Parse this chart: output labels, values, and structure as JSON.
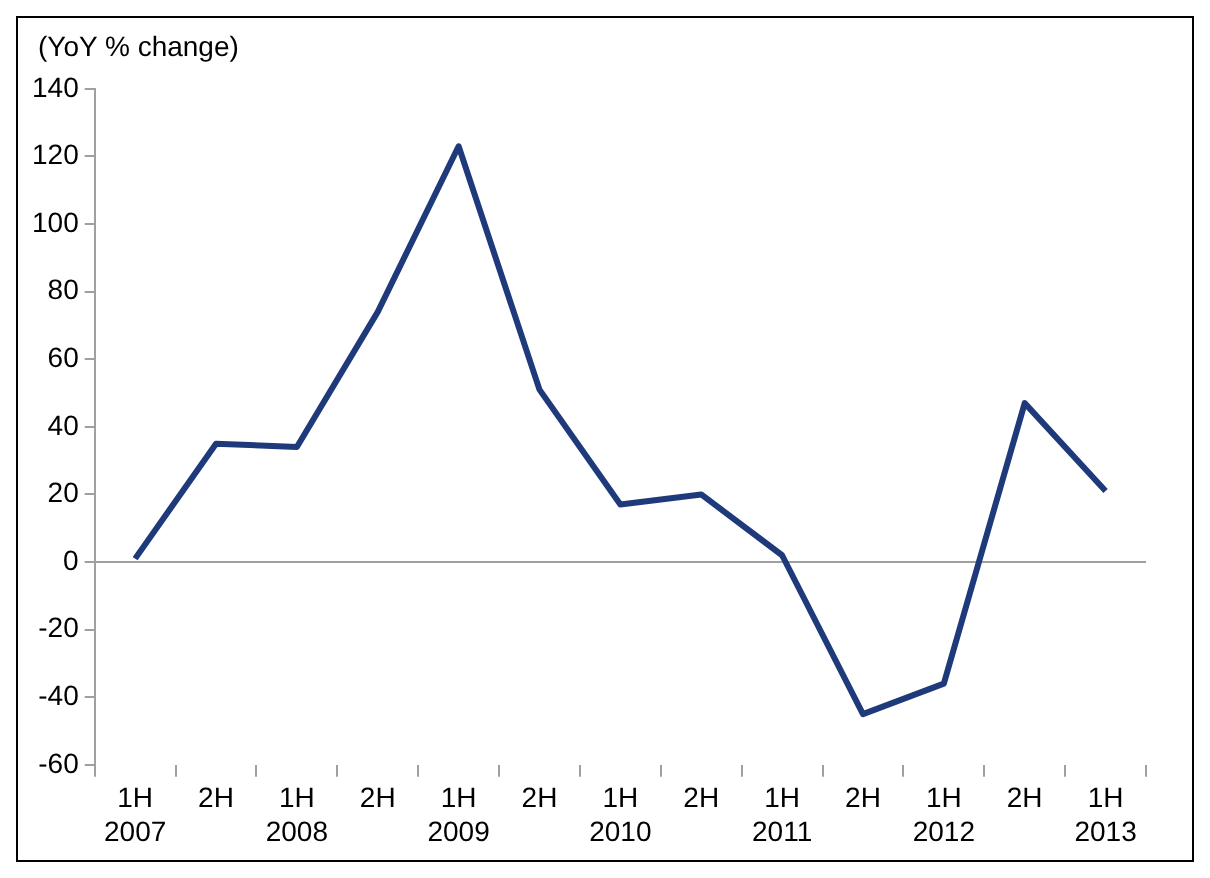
{
  "chart_data": {
    "type": "line",
    "ylabel": "(YoY % change)",
    "categories": [
      "1H\n2007",
      "2H",
      "1H\n2008",
      "2H",
      "1H\n2009",
      "2H",
      "1H\n2010",
      "2H",
      "1H\n2011",
      "2H",
      "1H\n2012",
      "2H",
      "1H\n2013"
    ],
    "series": [
      {
        "color": "#1f3a7a",
        "values": [
          1,
          35,
          34,
          74,
          123,
          51,
          17,
          20,
          2,
          -45,
          -36,
          47,
          21
        ]
      }
    ],
    "ylim": [
      -60,
      140
    ],
    "yticks": [
      -60,
      -40,
      -20,
      0,
      20,
      40,
      60,
      80,
      100,
      120,
      140
    ],
    "ref_lines": [
      {
        "axis": "y",
        "value": 0,
        "color": "#a0a0a0"
      }
    ],
    "grid": false,
    "legend": false,
    "marker": "none",
    "line_style": "solid"
  }
}
